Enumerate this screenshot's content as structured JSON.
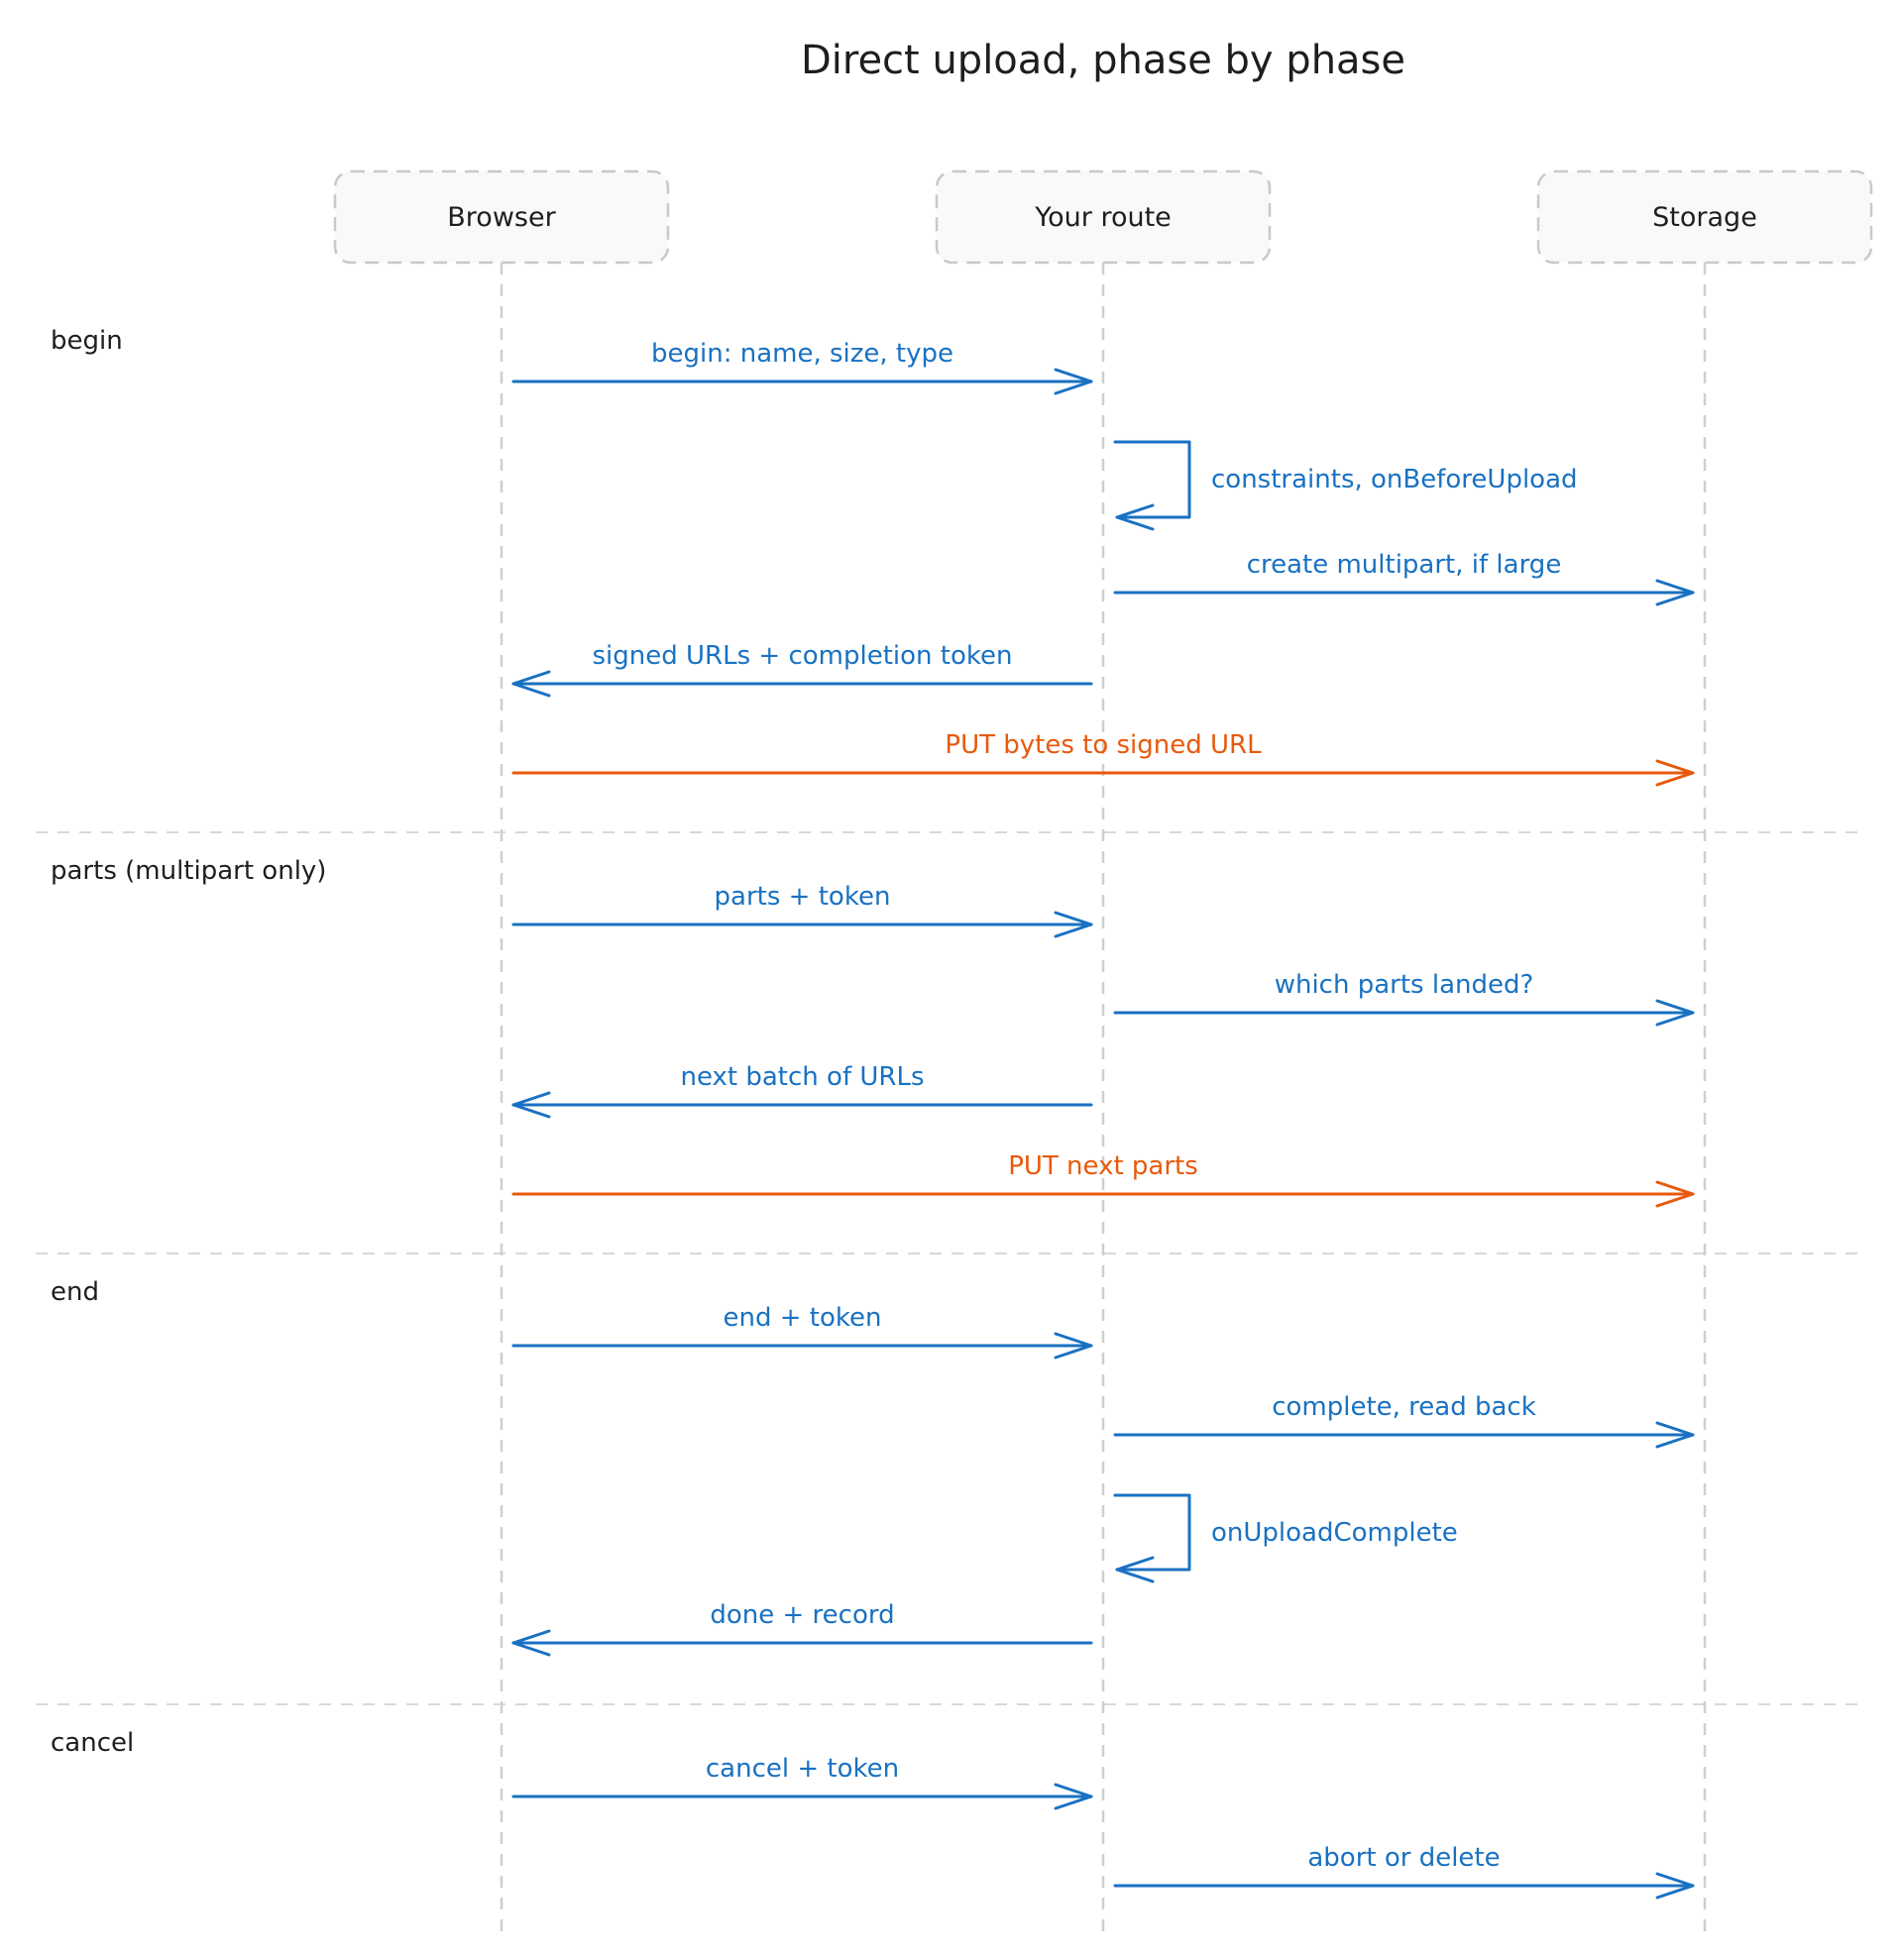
{
  "title": "Direct upload, phase by phase",
  "colors": {
    "request": "#1971c2",
    "bytes": "#e8590c",
    "ink": "#1e1e1e",
    "lifeline": "#cfcfcf",
    "actor_fill": "#f8f9fa",
    "actor_border": "#c9c9c9"
  },
  "actors": [
    {
      "id": "browser",
      "label": "Browser"
    },
    {
      "id": "route",
      "label": "Your route"
    },
    {
      "id": "storage",
      "label": "Storage"
    }
  ],
  "phases": [
    {
      "id": "begin",
      "label": "begin"
    },
    {
      "id": "parts",
      "label": "parts (multipart only)"
    },
    {
      "id": "end",
      "label": "end"
    },
    {
      "id": "cancel",
      "label": "cancel"
    }
  ],
  "messages": [
    {
      "phase": "begin",
      "from": "browser",
      "to": "route",
      "label": "begin: name, size, type",
      "kind": "request"
    },
    {
      "phase": "begin",
      "from": "route",
      "to": "route",
      "label": "constraints, onBeforeUpload",
      "kind": "request"
    },
    {
      "phase": "begin",
      "from": "route",
      "to": "storage",
      "label": "create multipart, if large",
      "kind": "request"
    },
    {
      "phase": "begin",
      "from": "route",
      "to": "browser",
      "label": "signed URLs + completion token",
      "kind": "request"
    },
    {
      "phase": "begin",
      "from": "browser",
      "to": "storage",
      "label": "PUT bytes to signed URL",
      "kind": "bytes"
    },
    {
      "phase": "parts",
      "from": "browser",
      "to": "route",
      "label": "parts + token",
      "kind": "request"
    },
    {
      "phase": "parts",
      "from": "route",
      "to": "storage",
      "label": "which parts landed?",
      "kind": "request"
    },
    {
      "phase": "parts",
      "from": "route",
      "to": "browser",
      "label": "next batch of URLs",
      "kind": "request"
    },
    {
      "phase": "parts",
      "from": "browser",
      "to": "storage",
      "label": "PUT next parts",
      "kind": "bytes"
    },
    {
      "phase": "end",
      "from": "browser",
      "to": "route",
      "label": "end + token",
      "kind": "request"
    },
    {
      "phase": "end",
      "from": "route",
      "to": "storage",
      "label": "complete, read back",
      "kind": "request"
    },
    {
      "phase": "end",
      "from": "route",
      "to": "route",
      "label": "onUploadComplete",
      "kind": "request"
    },
    {
      "phase": "end",
      "from": "route",
      "to": "browser",
      "label": "done + record",
      "kind": "request"
    },
    {
      "phase": "cancel",
      "from": "browser",
      "to": "route",
      "label": "cancel + token",
      "kind": "request"
    },
    {
      "phase": "cancel",
      "from": "route",
      "to": "storage",
      "label": "abort or delete",
      "kind": "request"
    }
  ]
}
